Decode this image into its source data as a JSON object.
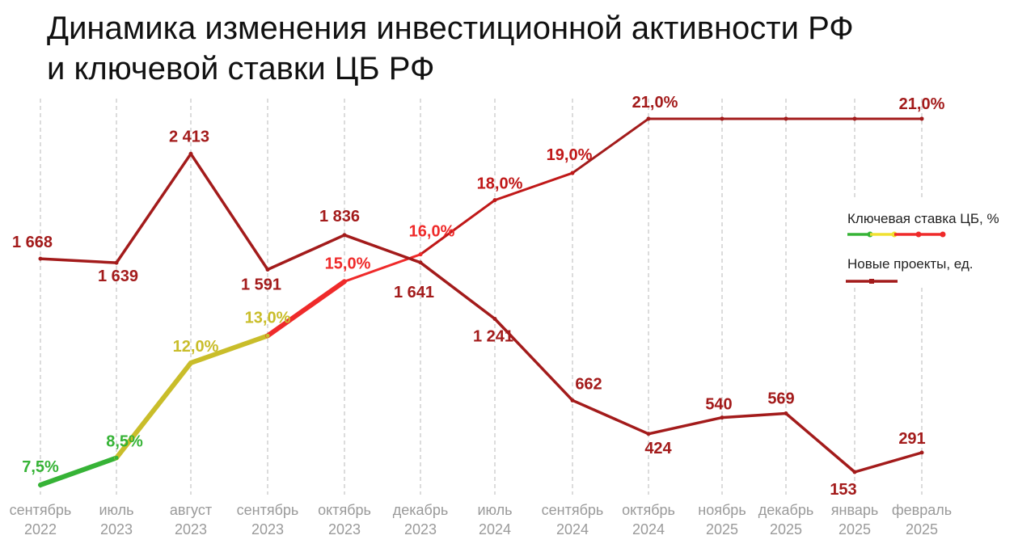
{
  "title_lines": [
    "Динамика изменения инвестиционной активности РФ",
    "и ключевой ставки ЦБ РФ"
  ],
  "chart_data": {
    "type": "line",
    "title": "Динамика изменения инвестиционной активности РФ и ключевой ставки ЦБ РФ",
    "categories": [
      [
        "сентябрь",
        "2022"
      ],
      [
        "июль",
        "2023"
      ],
      [
        "август",
        "2023"
      ],
      [
        "сентябрь",
        "2023"
      ],
      [
        "октябрь",
        "2023"
      ],
      [
        "декабрь",
        "2023"
      ],
      [
        "июль",
        "2024"
      ],
      [
        "сентябрь",
        "2024"
      ],
      [
        "октябрь",
        "2024"
      ],
      [
        "ноябрь",
        "2025"
      ],
      [
        "декабрь",
        "2025"
      ],
      [
        "январь",
        "2025"
      ],
      [
        "февраль",
        "2025"
      ]
    ],
    "grid": "vertical dashed",
    "legend_position": "right",
    "series": [
      {
        "name": "Ключевая ставка ЦБ, %",
        "values": [
          7.5,
          8.5,
          12.0,
          13.0,
          15.0,
          16.0,
          18.0,
          19.0,
          21.0,
          21.0,
          21.0,
          21.0,
          21.0
        ],
        "labels": [
          "7,5%",
          "8,5%",
          "12,0%",
          "13,0%",
          "15,0%",
          "16,0%",
          "18,0%",
          "19,0%",
          "21,0%",
          "",
          "",
          "",
          "21,0%"
        ],
        "colors": [
          "#36b336",
          "#36b336",
          "#c9bd2a",
          "#c9bd2a",
          "#ef2a2a",
          "#ef2a2a",
          "#c01818",
          "#c01818",
          "#a31b1b",
          "#a31b1b",
          "#a31b1b",
          "#a31b1b",
          "#a31b1b"
        ],
        "legend_colors": [
          "#36b336",
          "#f0e030",
          "#ef2a2a",
          "#ef2a2a"
        ]
      },
      {
        "name": "Новые проекты, ед.",
        "values": [
          1668,
          1639,
          2413,
          1591,
          1836,
          1641,
          1241,
          662,
          424,
          540,
          569,
          153,
          291
        ],
        "labels": [
          "1 668",
          "1 639",
          "2 413",
          "1 591",
          "1 836",
          "1 641",
          "1 241",
          "662",
          "424",
          "540",
          "569",
          "153",
          "291"
        ],
        "color": "#a31b1b"
      }
    ]
  }
}
